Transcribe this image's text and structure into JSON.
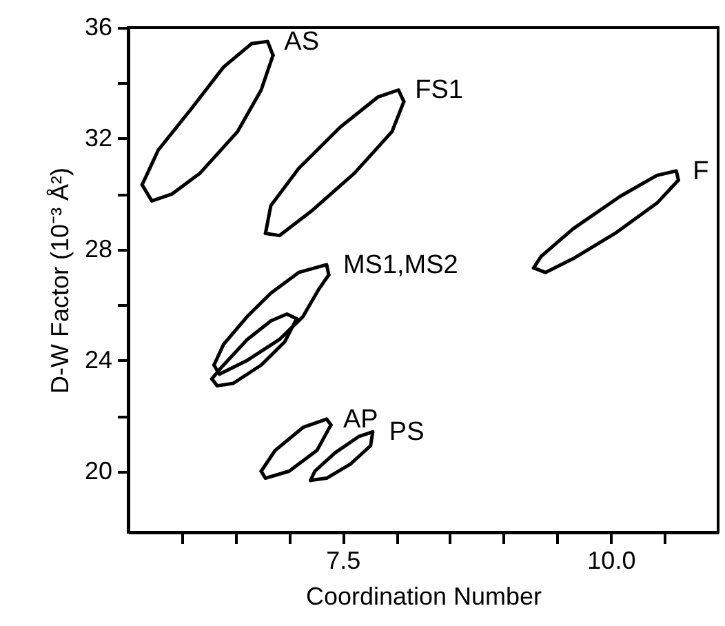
{
  "chart_data": {
    "type": "line",
    "xlabel": "Coordination Number",
    "ylabel": "D-W Factor (10⁻³ Å²)",
    "xlim": [
      5.5,
      11.0
    ],
    "ylim": [
      17.8,
      36
    ],
    "xticks": [
      {
        "value": 6.0,
        "label": null
      },
      {
        "value": 6.5,
        "label": null
      },
      {
        "value": 7.0,
        "label": null
      },
      7.5,
      {
        "value": 8.0,
        "label": null
      },
      {
        "value": 8.5,
        "label": null
      },
      {
        "value": 9.0,
        "label": null
      },
      {
        "value": 9.5,
        "label": null
      },
      {
        "value": 10.0,
        "label": "10.0"
      },
      {
        "value": 10.5,
        "label": null
      }
    ],
    "yticks": [
      20,
      {
        "value": 22,
        "label": null
      },
      24,
      {
        "value": 26,
        "label": null
      },
      28,
      {
        "value": 30,
        "label": null
      },
      32,
      {
        "value": 34,
        "label": null
      },
      36
    ],
    "grid": false,
    "marker": "none",
    "line_style": "solid",
    "series": [
      {
        "name": "AS",
        "color": "#000000",
        "x": [
          5.63,
          5.78,
          6.09,
          6.39,
          6.65,
          6.8,
          6.85
        ],
        "values": [
          30.33,
          31.58,
          33.08,
          34.58,
          35.42,
          35.5,
          35.0
        ]
      },
      {
        "color": "#000000",
        "x": [
          5.63,
          5.72,
          5.91,
          6.17,
          6.52,
          6.74,
          6.85
        ],
        "values": [
          30.33,
          29.75,
          30.0,
          30.75,
          32.25,
          33.75,
          35.0
        ]
      },
      {
        "name": "FS1",
        "color": "#000000",
        "x": [
          6.78,
          6.83,
          7.09,
          7.48,
          7.83,
          8.02,
          8.07
        ],
        "values": [
          28.58,
          29.58,
          30.92,
          32.42,
          33.5,
          33.75,
          33.33
        ]
      },
      {
        "color": "#000000",
        "x": [
          6.78,
          6.91,
          7.22,
          7.61,
          7.96,
          8.07
        ],
        "values": [
          28.58,
          28.5,
          29.42,
          30.75,
          32.25,
          33.33
        ]
      },
      {
        "name": "F",
        "color": "#000000",
        "x": [
          9.28,
          9.35,
          9.65,
          10.09,
          10.43,
          10.61,
          10.63
        ],
        "values": [
          27.33,
          27.75,
          28.75,
          29.92,
          30.67,
          30.83,
          30.5
        ]
      },
      {
        "color": "#000000",
        "x": [
          9.28,
          9.39,
          9.65,
          10.04,
          10.43,
          10.63
        ],
        "values": [
          27.33,
          27.17,
          27.67,
          28.58,
          29.67,
          30.5
        ]
      },
      {
        "name": "MS1,MS2",
        "color": "#000000",
        "x": [
          6.3,
          6.39,
          6.61,
          6.83,
          7.09,
          7.35,
          7.37
        ],
        "values": [
          23.83,
          24.58,
          25.58,
          26.42,
          27.17,
          27.45,
          27.08
        ]
      },
      {
        "color": "#000000",
        "x": [
          6.3,
          6.35,
          6.61,
          6.91,
          7.13,
          7.28,
          7.37
        ],
        "values": [
          23.83,
          23.5,
          24.0,
          24.75,
          25.58,
          26.58,
          27.08
        ]
      },
      {
        "color": "#000000",
        "x": [
          6.28,
          6.37,
          6.61,
          6.83,
          6.98,
          7.07
        ],
        "values": [
          23.33,
          23.75,
          24.75,
          25.42,
          25.67,
          25.5
        ]
      },
      {
        "color": "#000000",
        "x": [
          6.28,
          6.33,
          6.48,
          6.74,
          6.96,
          7.07
        ],
        "values": [
          23.33,
          23.08,
          23.17,
          23.83,
          24.67,
          25.5
        ]
      },
      {
        "name": "AP",
        "color": "#000000",
        "x": [
          6.74,
          6.87,
          7.13,
          7.35,
          7.39
        ],
        "values": [
          20.0,
          20.75,
          21.58,
          21.88,
          21.67
        ]
      },
      {
        "color": "#000000",
        "x": [
          6.74,
          6.78,
          7.0,
          7.26,
          7.39
        ],
        "values": [
          20.0,
          19.75,
          20.0,
          20.75,
          21.67
        ]
      },
      {
        "name": "PS",
        "color": "#000000",
        "x": [
          7.2,
          7.24,
          7.43,
          7.65,
          7.78
        ],
        "values": [
          19.67,
          20.0,
          20.67,
          21.25,
          21.42
        ]
      },
      {
        "color": "#000000",
        "x": [
          7.2,
          7.35,
          7.57,
          7.76,
          7.78
        ],
        "values": [
          19.67,
          19.75,
          20.25,
          20.92,
          21.42
        ]
      }
    ]
  }
}
